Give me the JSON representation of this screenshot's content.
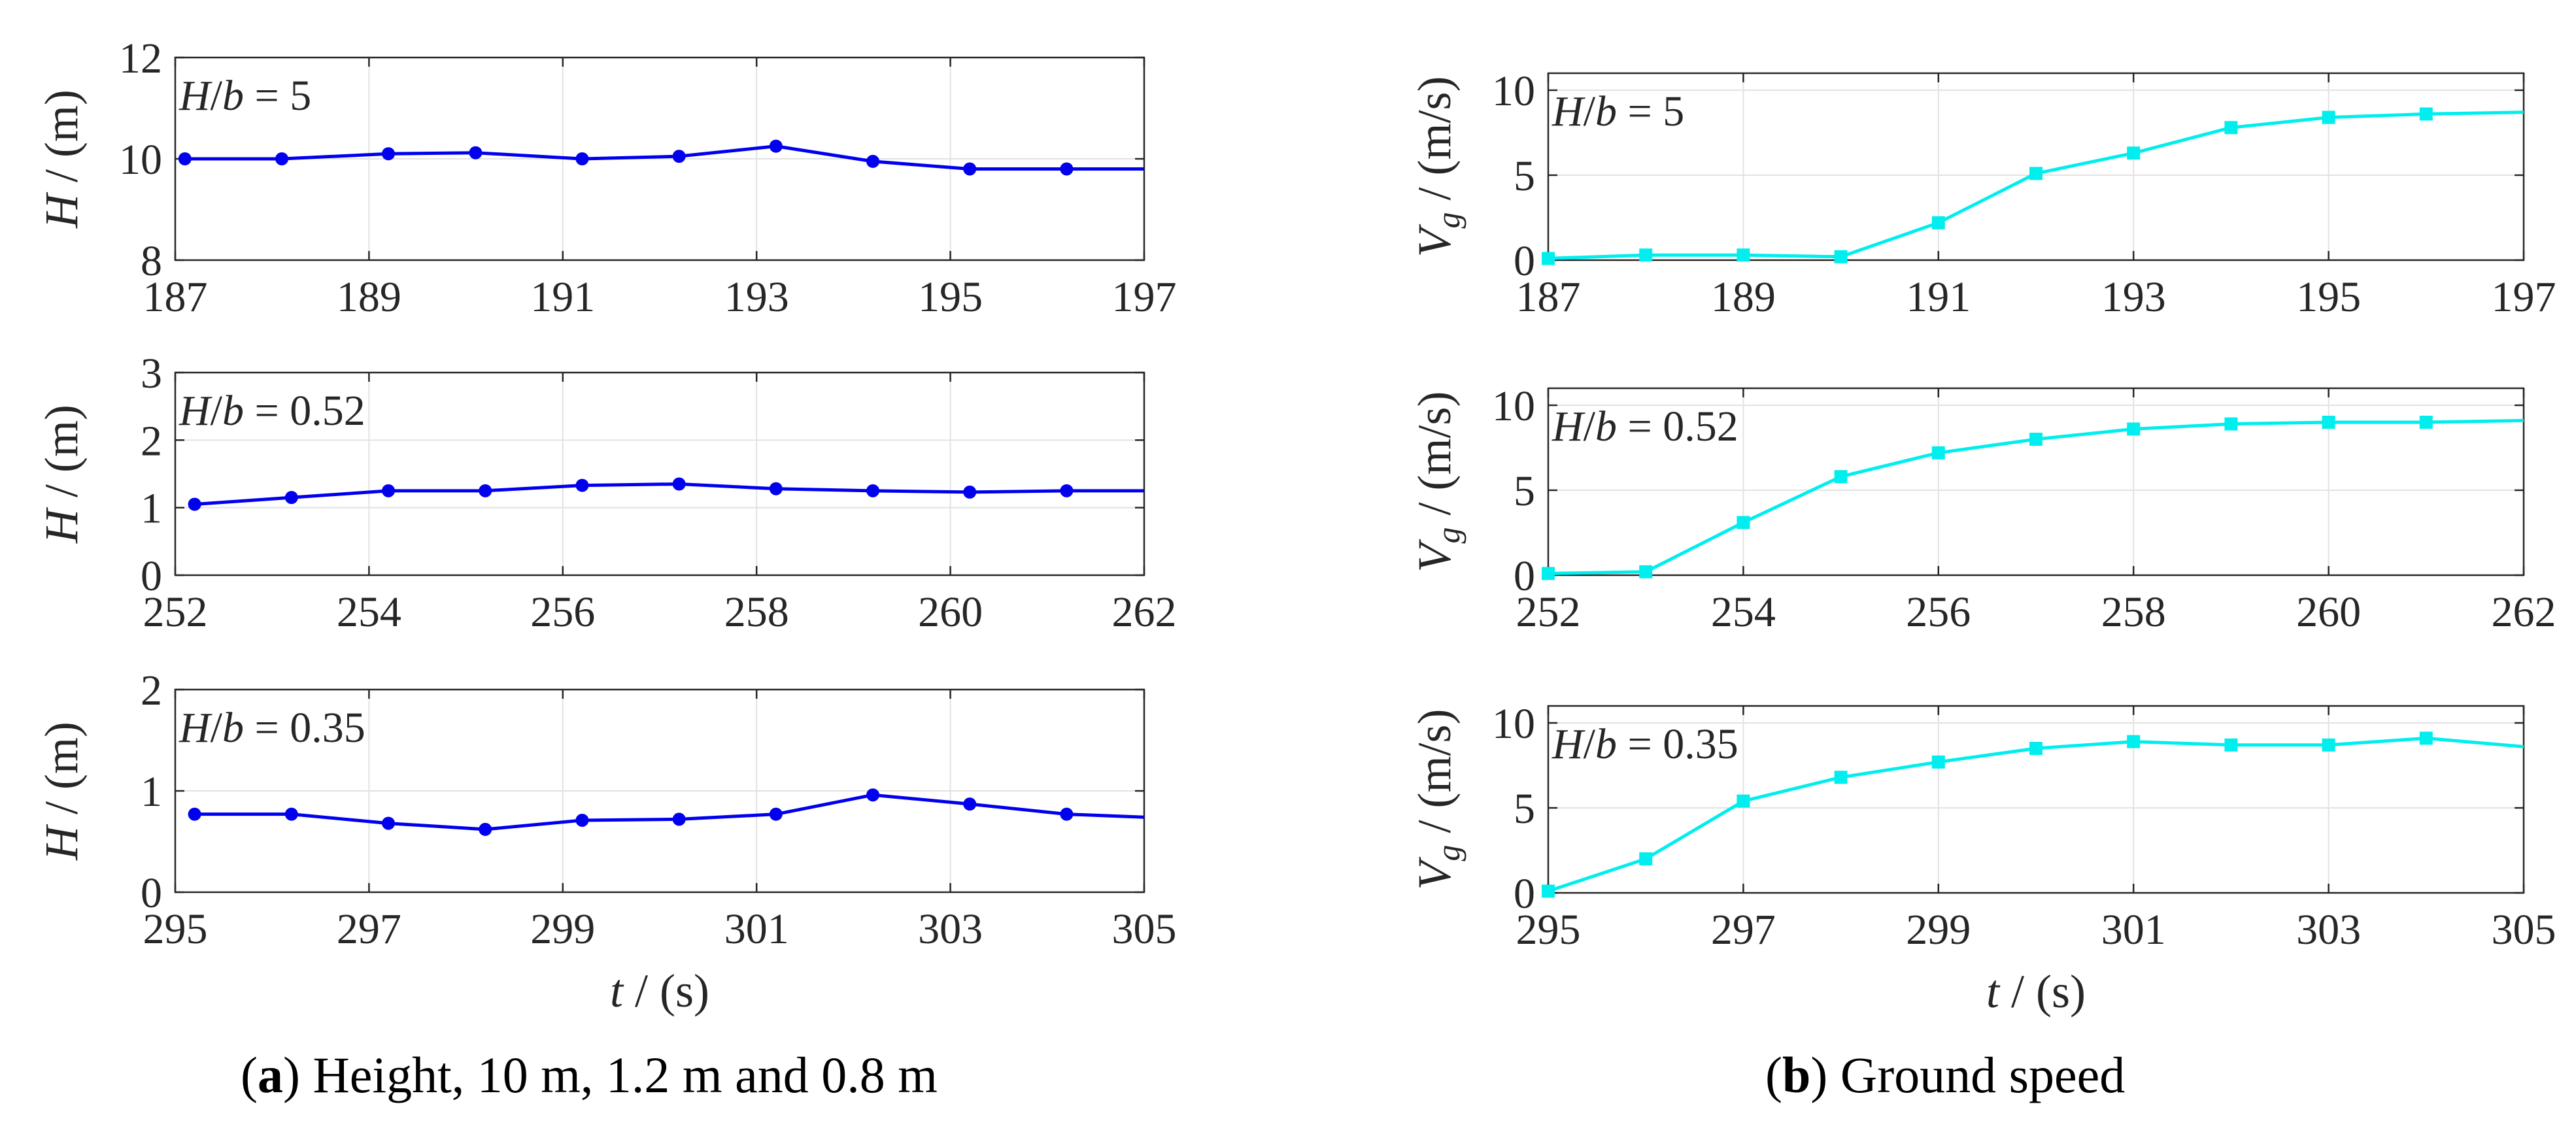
{
  "figure": {
    "caption_a": {
      "letter": "a",
      "text": " Height, 10 m, 1.2 m and 0.8 m"
    },
    "caption_b": {
      "letter": "b",
      "text": " Ground speed"
    }
  },
  "colors": {
    "height": "#0000ee",
    "speed": "#00eeee",
    "axis": "#262626",
    "grid": "#e2e2e2"
  },
  "chart_data": [
    {
      "id": "a1",
      "type": "line",
      "series_name": "Height",
      "marker": "circle",
      "color": "#0000ee",
      "annotation": "H/b = 5",
      "annotation_parts": [
        "H",
        "/",
        "b",
        " = 5"
      ],
      "ylabel": "H / (m)",
      "xlabel": "",
      "xlim": [
        187,
        197
      ],
      "ylim": [
        8,
        12
      ],
      "xticks": [
        187,
        189,
        191,
        193,
        195,
        197
      ],
      "yticks": [
        8,
        10,
        12
      ],
      "x": [
        187.1,
        188.1,
        189.2,
        190.1,
        191.2,
        192.2,
        193.2,
        194.2,
        195.2,
        196.2,
        197
      ],
      "y": [
        10.0,
        10.0,
        10.1,
        10.12,
        10.0,
        10.05,
        10.25,
        9.95,
        9.8,
        9.8,
        9.8
      ]
    },
    {
      "id": "a2",
      "type": "line",
      "series_name": "Height",
      "marker": "circle",
      "color": "#0000ee",
      "annotation": "H/b = 0.52",
      "annotation_parts": [
        "H",
        "/",
        "b",
        " = 0.52"
      ],
      "ylabel": "H / (m)",
      "xlabel": "",
      "xlim": [
        252,
        262
      ],
      "ylim": [
        0,
        3
      ],
      "xticks": [
        252,
        254,
        256,
        258,
        260,
        262
      ],
      "yticks": [
        0,
        1,
        2,
        3
      ],
      "x": [
        252.2,
        253.2,
        254.2,
        255.2,
        256.2,
        257.2,
        258.2,
        259.2,
        260.2,
        261.2,
        262
      ],
      "y": [
        1.05,
        1.15,
        1.25,
        1.25,
        1.33,
        1.35,
        1.28,
        1.25,
        1.23,
        1.25,
        1.25
      ]
    },
    {
      "id": "a3",
      "type": "line",
      "series_name": "Height",
      "marker": "circle",
      "color": "#0000ee",
      "annotation": "H/b = 0.35",
      "annotation_parts": [
        "H",
        "/",
        "b",
        " = 0.35"
      ],
      "ylabel": "H / (m)",
      "xlabel": "t / (s)",
      "xlim": [
        295,
        305
      ],
      "ylim": [
        0,
        2
      ],
      "xticks": [
        295,
        297,
        299,
        301,
        303,
        305
      ],
      "yticks": [
        0,
        1,
        2
      ],
      "x": [
        295.2,
        296.2,
        297.2,
        298.2,
        299.2,
        300.2,
        301.2,
        302.2,
        303.2,
        304.2,
        305
      ],
      "y": [
        0.77,
        0.77,
        0.68,
        0.62,
        0.71,
        0.72,
        0.77,
        0.96,
        0.87,
        0.77,
        0.74
      ]
    },
    {
      "id": "b1",
      "type": "line",
      "series_name": "Ground speed",
      "marker": "square",
      "color": "#00eeee",
      "annotation": "H/b = 5",
      "annotation_parts": [
        "H",
        "/",
        "b",
        " = 5"
      ],
      "ylabel": "Vg / (m/s)",
      "xlabel": "",
      "xlim": [
        187,
        197
      ],
      "ylim": [
        0,
        11
      ],
      "xticks": [
        187,
        189,
        191,
        193,
        195,
        197
      ],
      "yticks": [
        0,
        5,
        10
      ],
      "x": [
        187,
        188,
        189,
        190,
        191,
        192,
        193,
        194,
        195,
        196,
        197
      ],
      "y": [
        0.1,
        0.3,
        0.3,
        0.2,
        2.2,
        5.1,
        6.3,
        7.8,
        8.4,
        8.6,
        8.7
      ]
    },
    {
      "id": "b2",
      "type": "line",
      "series_name": "Ground speed",
      "marker": "square",
      "color": "#00eeee",
      "annotation": "H/b = 0.52",
      "annotation_parts": [
        "H",
        "/",
        "b",
        " = 0.52"
      ],
      "ylabel": "Vg / (m/s)",
      "xlabel": "",
      "xlim": [
        252,
        262
      ],
      "ylim": [
        0,
        11
      ],
      "xticks": [
        252,
        254,
        256,
        258,
        260,
        262
      ],
      "yticks": [
        0,
        5,
        10
      ],
      "x": [
        252,
        253,
        254,
        255,
        256,
        257,
        258,
        259,
        260,
        261,
        262
      ],
      "y": [
        0.1,
        0.2,
        3.1,
        5.8,
        7.2,
        8.0,
        8.6,
        8.9,
        9.0,
        9.0,
        9.1
      ]
    },
    {
      "id": "b3",
      "type": "line",
      "series_name": "Ground speed",
      "marker": "square",
      "color": "#00eeee",
      "annotation": "H/b = 0.35",
      "annotation_parts": [
        "H",
        "/",
        "b",
        " = 0.35"
      ],
      "ylabel": "Vg / (m/s)",
      "xlabel": "t / (s)",
      "xlim": [
        295,
        305
      ],
      "ylim": [
        0,
        11
      ],
      "xticks": [
        295,
        297,
        299,
        301,
        303,
        305
      ],
      "yticks": [
        0,
        5,
        10
      ],
      "x": [
        295,
        296,
        297,
        298,
        299,
        300,
        301,
        302,
        303,
        304,
        305
      ],
      "y": [
        0.1,
        2.0,
        5.4,
        6.8,
        7.7,
        8.5,
        8.9,
        8.7,
        8.7,
        9.1,
        8.6
      ]
    }
  ]
}
